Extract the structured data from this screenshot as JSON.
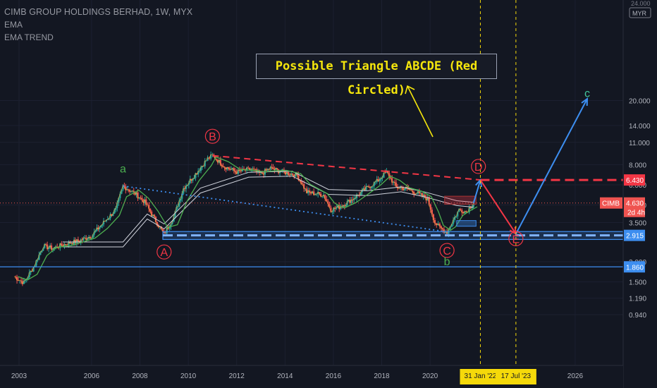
{
  "header": {
    "title": "CIMB GROUP HOLDINGS BERHAD, 1W, MYX",
    "indicators": [
      "EMA",
      "EMA TREND"
    ]
  },
  "annotation": {
    "text": "Possible Triangle ABCDE (Red Circled)"
  },
  "axis_corner": {
    "currency": "MYR",
    "top_value": "24.000"
  },
  "colors": {
    "background": "#131722",
    "up": "#26a69a",
    "down": "#ef5350",
    "red_wave": "#f23645",
    "green_wave": "#4caf50",
    "blue_path": "#3d8ef0",
    "yellow_arrow": "#f5e60c",
    "teal_label": "#42c79b"
  },
  "chart_data": {
    "type": "line",
    "title": "CIMB GROUP HOLDINGS BERHAD, 1W, MYX",
    "y_scale": "log",
    "y_ticks": [
      "20.000",
      "14.000",
      "11.000",
      "8.000",
      "6.000",
      "4.500",
      "3.500",
      "2.000",
      "1.500",
      "1.190",
      "0.940"
    ],
    "x_ticks": [
      "2003",
      "2006",
      "2008",
      "2010",
      "2012",
      "2014",
      "2016",
      "2018",
      "2020",
      "2026"
    ],
    "x_range": [
      2002.5,
      2028
    ],
    "y_range": [
      0.85,
      25
    ],
    "price_series": [
      {
        "date": 2002.8,
        "price": 1.62
      },
      {
        "date": 2003.2,
        "price": 1.48
      },
      {
        "date": 2003.6,
        "price": 1.85
      },
      {
        "date": 2004.0,
        "price": 2.5
      },
      {
        "date": 2004.4,
        "price": 2.42
      },
      {
        "date": 2005.0,
        "price": 2.6
      },
      {
        "date": 2005.5,
        "price": 2.7
      },
      {
        "date": 2006.0,
        "price": 2.9
      },
      {
        "date": 2006.5,
        "price": 3.5
      },
      {
        "date": 2007.0,
        "price": 4.2
      },
      {
        "date": 2007.3,
        "price": 5.9
      },
      {
        "date": 2007.8,
        "price": 5.3
      },
      {
        "date": 2008.2,
        "price": 4.7
      },
      {
        "date": 2008.6,
        "price": 3.7
      },
      {
        "date": 2009.0,
        "price": 2.95
      },
      {
        "date": 2009.4,
        "price": 3.8
      },
      {
        "date": 2009.8,
        "price": 5.7
      },
      {
        "date": 2010.3,
        "price": 7.0
      },
      {
        "date": 2010.8,
        "price": 8.7
      },
      {
        "date": 2011.0,
        "price": 9.1
      },
      {
        "date": 2011.5,
        "price": 7.8
      },
      {
        "date": 2012.0,
        "price": 7.2
      },
      {
        "date": 2012.6,
        "price": 7.5
      },
      {
        "date": 2013.0,
        "price": 7.0
      },
      {
        "date": 2013.4,
        "price": 7.6
      },
      {
        "date": 2013.9,
        "price": 7.2
      },
      {
        "date": 2014.5,
        "price": 6.9
      },
      {
        "date": 2014.9,
        "price": 5.4
      },
      {
        "date": 2015.6,
        "price": 5.2
      },
      {
        "date": 2015.9,
        "price": 4.2
      },
      {
        "date": 2016.3,
        "price": 4.4
      },
      {
        "date": 2016.8,
        "price": 4.9
      },
      {
        "date": 2017.3,
        "price": 5.6
      },
      {
        "date": 2017.8,
        "price": 6.3
      },
      {
        "date": 2018.2,
        "price": 7.2
      },
      {
        "date": 2018.6,
        "price": 5.8
      },
      {
        "date": 2019.0,
        "price": 5.7
      },
      {
        "date": 2019.5,
        "price": 5.3
      },
      {
        "date": 2019.9,
        "price": 4.9
      },
      {
        "date": 2020.2,
        "price": 3.5
      },
      {
        "date": 2020.4,
        "price": 3.25
      },
      {
        "date": 2020.7,
        "price": 3.05
      },
      {
        "date": 2020.9,
        "price": 3.5
      },
      {
        "date": 2021.2,
        "price": 4.2
      },
      {
        "date": 2021.5,
        "price": 4.1
      },
      {
        "date": 2021.8,
        "price": 4.63
      }
    ],
    "ema_series": [
      {
        "date": 2004.8,
        "price": 2.55
      },
      {
        "date": 2007.3,
        "price": 2.55
      },
      {
        "date": 2008.3,
        "price": 3.8
      },
      {
        "date": 2009.0,
        "price": 3.3
      },
      {
        "date": 2010.5,
        "price": 5.5
      },
      {
        "date": 2012.5,
        "price": 6.9
      },
      {
        "date": 2014.3,
        "price": 7.0
      },
      {
        "date": 2015.8,
        "price": 5.4
      },
      {
        "date": 2017.4,
        "price": 5.3
      },
      {
        "date": 2018.8,
        "price": 5.6
      },
      {
        "date": 2019.8,
        "price": 5.2
      },
      {
        "date": 2021.1,
        "price": 4.6
      },
      {
        "date": 2021.8,
        "price": 4.5
      }
    ],
    "waves": [
      {
        "label": "a",
        "date": 2007.3,
        "price": 7.6
      },
      {
        "label": "A",
        "date": 2009.0,
        "price": 2.3
      },
      {
        "label": "B",
        "date": 2011.0,
        "price": 12.0
      },
      {
        "label": "C",
        "date": 2020.7,
        "price": 2.35
      },
      {
        "label": "b",
        "date": 2020.7,
        "price": 2.02
      },
      {
        "label": "D",
        "date": 2022.0,
        "price": 7.8
      },
      {
        "label": "E",
        "date": 2023.55,
        "price": 2.78
      },
      {
        "label": "c",
        "date": 2026.5,
        "price": 22.3
      }
    ],
    "trendlines": [
      {
        "from": {
          "date": 2011.0,
          "price": 9.1
        },
        "to": {
          "date": 2022.1,
          "price": 6.43
        },
        "style": "dashed-red"
      },
      {
        "from": {
          "date": 2007.3,
          "price": 5.9
        },
        "to": {
          "date": 2020.5,
          "price": 3.1
        },
        "style": "dotted-blue"
      }
    ],
    "projection": [
      {
        "date": 2021.8,
        "price": 4.63
      },
      {
        "date": 2022.08,
        "price": 6.43
      },
      {
        "date": 2023.55,
        "price": 2.98
      },
      {
        "date": 2026.5,
        "price": 20.5
      }
    ],
    "horizontal_levels": [
      {
        "price": 6.43,
        "label": "6.430",
        "color": "#f23645"
      },
      {
        "price": 2.915,
        "label": "2.915",
        "color": "#3d8ef0"
      },
      {
        "price": 1.86,
        "label": "1.860",
        "color": "#3d8ef0"
      },
      {
        "price": 4.63,
        "label": "4.630",
        "color": "#f23645"
      }
    ],
    "current_price": {
      "value": "4.630",
      "symbol": "CIMB",
      "countdown": "2d 4h"
    },
    "date_markers": [
      {
        "date": 2022.08,
        "label": "31 Jan '22"
      },
      {
        "date": 2023.55,
        "label": "17 Jul '23"
      }
    ]
  }
}
